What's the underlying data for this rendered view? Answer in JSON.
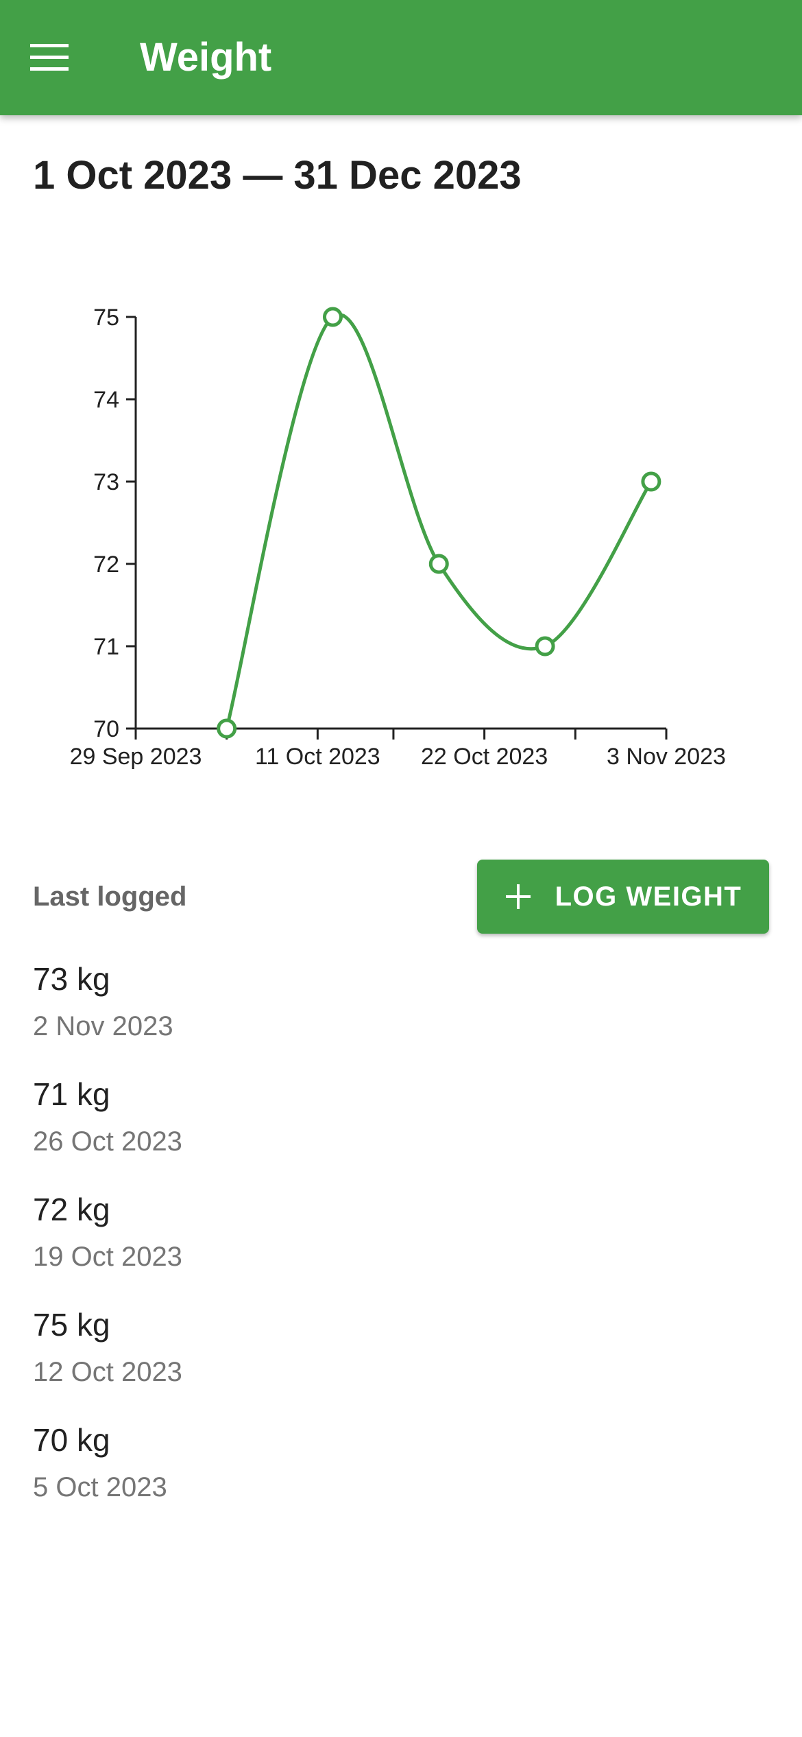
{
  "app_bar": {
    "title": "Weight",
    "menu_icon": "menu-icon",
    "color": "#43a047"
  },
  "date_range": "1 Oct 2023 — 31 Dec 2023",
  "chart_data": {
    "type": "line",
    "x": [
      "2023-10-05",
      "2023-10-12",
      "2023-10-19",
      "2023-10-26",
      "2023-11-02"
    ],
    "series": [
      {
        "values": [
          70,
          75,
          72,
          71,
          73
        ],
        "color": "#43a047"
      }
    ],
    "x_ticks": [
      "2023-09-29",
      "2023-10-05",
      "2023-10-11",
      "2023-10-16",
      "2023-10-22",
      "2023-10-28",
      "2023-11-03"
    ],
    "x_tick_labels": [
      {
        "date": "2023-09-29",
        "label": "29 Sep 2023"
      },
      {
        "date": "2023-10-11",
        "label": "11 Oct 2023"
      },
      {
        "date": "2023-10-22",
        "label": "22 Oct 2023"
      },
      {
        "date": "2023-11-03",
        "label": "3 Nov 2023"
      }
    ],
    "xlim": [
      "2023-09-29",
      "2023-11-03"
    ],
    "y_ticks": [
      70,
      71,
      72,
      73,
      74,
      75
    ],
    "ylim": [
      70,
      75
    ],
    "curve": "smooth",
    "markers": "hollow-circle",
    "grid": false,
    "title": "",
    "xlabel": "",
    "ylabel": ""
  },
  "last_logged_label": "Last logged",
  "log_button": {
    "label": "LOG WEIGHT",
    "icon": "plus-icon"
  },
  "entries": [
    {
      "weight": "73 kg",
      "date": "2 Nov 2023"
    },
    {
      "weight": "71 kg",
      "date": "26 Oct 2023"
    },
    {
      "weight": "72 kg",
      "date": "19 Oct 2023"
    },
    {
      "weight": "75 kg",
      "date": "12 Oct 2023"
    },
    {
      "weight": "70 kg",
      "date": "5 Oct 2023"
    }
  ]
}
